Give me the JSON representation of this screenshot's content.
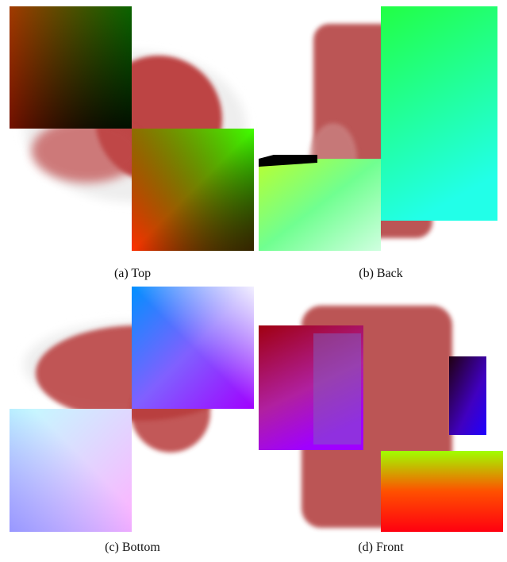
{
  "figure": {
    "panels": [
      {
        "caption": "(a) Top"
      },
      {
        "caption": "(b) Back"
      },
      {
        "caption": "(c) Bottom"
      },
      {
        "caption": "(d) Front"
      }
    ]
  }
}
